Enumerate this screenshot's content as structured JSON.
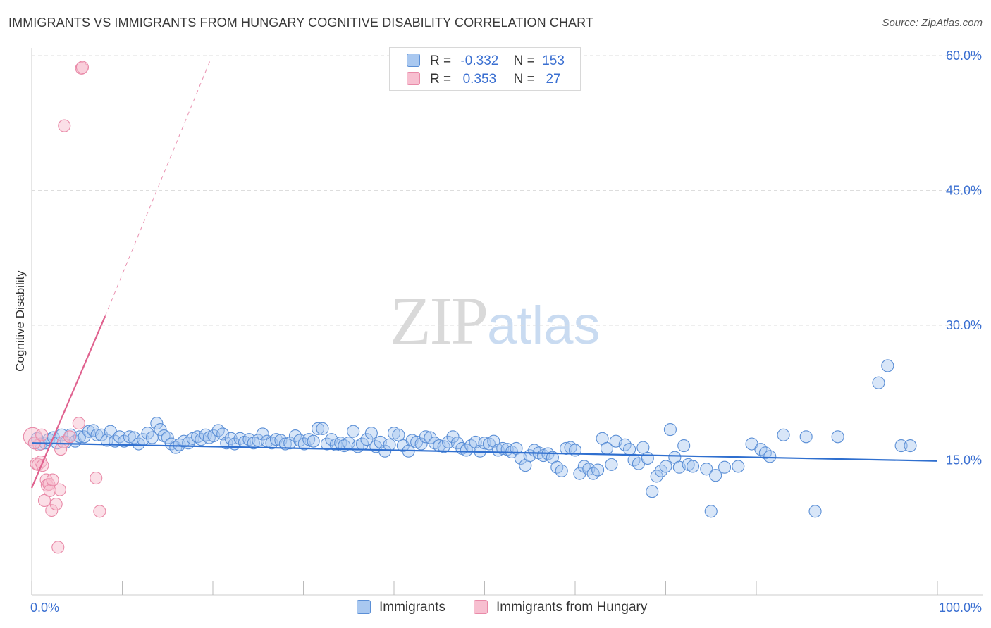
{
  "header": {
    "title": "IMMIGRANTS VS IMMIGRANTS FROM HUNGARY COGNITIVE DISABILITY CORRELATION CHART",
    "source": "Source: ZipAtlas.com"
  },
  "watermark": {
    "zip": "ZIP",
    "atlas": "atlas"
  },
  "legend": {
    "rows": [
      {
        "r_label": "R =",
        "r_value": "-0.332",
        "n_label": "N =",
        "n_value": "153"
      },
      {
        "r_label": "R =",
        "r_value": "0.353",
        "n_label": "N =",
        "n_value": "27"
      }
    ]
  },
  "bottom_legend": {
    "series1": "Immigrants",
    "series2": "Immigrants from Hungary"
  },
  "colors": {
    "blue_fill": "#a9c8f0",
    "blue_stroke": "#5b8fd6",
    "blue_line": "#2f6fcf",
    "pink_fill": "#f7bfd0",
    "pink_stroke": "#e98aa8",
    "pink_line": "#e0628f",
    "grid": "#dddddd",
    "label": "#3a6fd1"
  },
  "chart_data": {
    "type": "scatter",
    "title": "IMMIGRANTS VS IMMIGRANTS FROM HUNGARY COGNITIVE DISABILITY CORRELATION CHART",
    "xlabel": "",
    "ylabel": "Cognitive Disability",
    "xlim": [
      0,
      100
    ],
    "ylim": [
      0,
      60
    ],
    "x_tick_labels": [
      "0.0%",
      "100.0%"
    ],
    "y_ticks": [
      15,
      30,
      45,
      60
    ],
    "y_tick_labels": [
      "15.0%",
      "30.0%",
      "45.0%",
      "60.0%"
    ],
    "grid": true,
    "legend_position": "top-center",
    "series": [
      {
        "name": "Immigrants",
        "r": -0.332,
        "n": 153,
        "trend": {
          "x": [
            0,
            100
          ],
          "y": [
            16.9,
            14.9
          ]
        },
        "points": [
          [
            0.3,
            16.9
          ],
          [
            0.6,
            17.4
          ],
          [
            1.0,
            16.8
          ],
          [
            1.5,
            16.9
          ],
          [
            1.9,
            17.3
          ],
          [
            2.4,
            17.5
          ],
          [
            2.8,
            16.9
          ],
          [
            3.3,
            17.8
          ],
          [
            3.8,
            17.0
          ],
          [
            4.3,
            17.8
          ],
          [
            4.8,
            17.1
          ],
          [
            5.3,
            17.6
          ],
          [
            5.8,
            17.6
          ],
          [
            6.3,
            18.2
          ],
          [
            6.8,
            18.3
          ],
          [
            7.2,
            17.8
          ],
          [
            7.7,
            17.8
          ],
          [
            8.3,
            17.2
          ],
          [
            8.7,
            18.2
          ],
          [
            9.2,
            17.1
          ],
          [
            9.7,
            17.6
          ],
          [
            10.2,
            17.1
          ],
          [
            10.8,
            17.6
          ],
          [
            11.3,
            17.5
          ],
          [
            11.8,
            16.8
          ],
          [
            12.3,
            17.3
          ],
          [
            12.8,
            18.0
          ],
          [
            13.3,
            17.5
          ],
          [
            13.8,
            19.1
          ],
          [
            14.2,
            18.4
          ],
          [
            14.6,
            17.7
          ],
          [
            15.0,
            17.5
          ],
          [
            15.4,
            16.8
          ],
          [
            15.9,
            16.4
          ],
          [
            16.3,
            16.7
          ],
          [
            16.8,
            17.1
          ],
          [
            17.3,
            16.9
          ],
          [
            17.8,
            17.4
          ],
          [
            18.3,
            17.6
          ],
          [
            18.7,
            17.3
          ],
          [
            19.2,
            17.8
          ],
          [
            19.6,
            17.5
          ],
          [
            20.1,
            17.7
          ],
          [
            20.6,
            18.3
          ],
          [
            21.1,
            17.9
          ],
          [
            21.5,
            16.9
          ],
          [
            22.0,
            17.4
          ],
          [
            22.4,
            16.8
          ],
          [
            23.0,
            17.4
          ],
          [
            23.5,
            17.0
          ],
          [
            24.0,
            17.3
          ],
          [
            24.5,
            16.9
          ],
          [
            25.0,
            17.2
          ],
          [
            25.5,
            17.9
          ],
          [
            26.0,
            17.1
          ],
          [
            26.5,
            16.9
          ],
          [
            27.0,
            17.3
          ],
          [
            27.5,
            17.2
          ],
          [
            28.0,
            16.8
          ],
          [
            28.5,
            16.9
          ],
          [
            29.1,
            17.7
          ],
          [
            29.6,
            17.2
          ],
          [
            30.1,
            16.8
          ],
          [
            30.6,
            17.3
          ],
          [
            31.1,
            17.1
          ],
          [
            31.6,
            18.5
          ],
          [
            32.1,
            18.5
          ],
          [
            32.6,
            16.8
          ],
          [
            33.1,
            17.3
          ],
          [
            33.6,
            16.7
          ],
          [
            34.1,
            16.9
          ],
          [
            34.5,
            16.6
          ],
          [
            35.0,
            16.9
          ],
          [
            35.5,
            18.2
          ],
          [
            36.0,
            16.5
          ],
          [
            36.5,
            16.8
          ],
          [
            37.0,
            17.3
          ],
          [
            37.5,
            18.0
          ],
          [
            38.0,
            16.5
          ],
          [
            38.5,
            17.0
          ],
          [
            39.0,
            16.0
          ],
          [
            39.5,
            16.7
          ],
          [
            40.0,
            18.0
          ],
          [
            40.5,
            17.8
          ],
          [
            41.0,
            16.6
          ],
          [
            41.6,
            16.0
          ],
          [
            42.0,
            17.2
          ],
          [
            42.5,
            17.0
          ],
          [
            43.0,
            16.8
          ],
          [
            43.5,
            17.6
          ],
          [
            44.0,
            17.5
          ],
          [
            44.5,
            16.9
          ],
          [
            45.0,
            16.6
          ],
          [
            45.5,
            16.5
          ],
          [
            46.0,
            17.0
          ],
          [
            46.5,
            17.6
          ],
          [
            47.0,
            16.9
          ],
          [
            47.5,
            16.3
          ],
          [
            48.0,
            16.1
          ],
          [
            48.5,
            16.6
          ],
          [
            49.0,
            17.0
          ],
          [
            49.5,
            16.0
          ],
          [
            50.0,
            16.9
          ],
          [
            50.5,
            16.8
          ],
          [
            51.0,
            17.1
          ],
          [
            51.5,
            16.1
          ],
          [
            52.0,
            16.3
          ],
          [
            52.5,
            16.2
          ],
          [
            53.0,
            15.9
          ],
          [
            53.5,
            16.3
          ],
          [
            54.0,
            15.2
          ],
          [
            54.5,
            14.4
          ],
          [
            55.0,
            15.5
          ],
          [
            55.5,
            16.1
          ],
          [
            56.0,
            15.8
          ],
          [
            56.5,
            15.5
          ],
          [
            57.0,
            15.7
          ],
          [
            57.5,
            15.3
          ],
          [
            58.0,
            14.2
          ],
          [
            58.5,
            13.8
          ],
          [
            59.0,
            16.3
          ],
          [
            59.5,
            16.4
          ],
          [
            60.0,
            16.1
          ],
          [
            60.5,
            13.5
          ],
          [
            61.0,
            14.3
          ],
          [
            61.5,
            14.0
          ],
          [
            62.0,
            13.5
          ],
          [
            62.5,
            13.9
          ],
          [
            63.0,
            17.4
          ],
          [
            63.5,
            16.3
          ],
          [
            64.0,
            14.5
          ],
          [
            64.5,
            17.1
          ],
          [
            65.5,
            16.7
          ],
          [
            66.0,
            16.2
          ],
          [
            66.5,
            15.0
          ],
          [
            67.0,
            14.6
          ],
          [
            67.5,
            16.4
          ],
          [
            68.0,
            15.2
          ],
          [
            68.5,
            11.5
          ],
          [
            69.0,
            13.2
          ],
          [
            69.5,
            13.8
          ],
          [
            70.0,
            14.3
          ],
          [
            70.5,
            18.4
          ],
          [
            71.0,
            15.3
          ],
          [
            71.5,
            14.2
          ],
          [
            72.0,
            16.6
          ],
          [
            72.5,
            14.5
          ],
          [
            73.0,
            14.3
          ],
          [
            74.5,
            14.0
          ],
          [
            75.0,
            9.3
          ],
          [
            75.5,
            13.3
          ],
          [
            76.5,
            14.2
          ],
          [
            78.0,
            14.3
          ],
          [
            79.5,
            16.8
          ],
          [
            80.5,
            16.2
          ],
          [
            81.0,
            15.8
          ],
          [
            81.5,
            15.4
          ],
          [
            83.0,
            17.8
          ],
          [
            85.5,
            17.6
          ],
          [
            86.5,
            9.3
          ],
          [
            89.0,
            17.6
          ],
          [
            93.5,
            23.6
          ],
          [
            94.5,
            25.5
          ],
          [
            96.0,
            16.6
          ],
          [
            97.0,
            16.6
          ]
        ]
      },
      {
        "name": "Immigrants from Hungary",
        "r": 0.353,
        "n": 27,
        "trend": {
          "x": [
            0,
            8.1
          ],
          "y": [
            11.9,
            31.0
          ],
          "extension": {
            "x": [
              8.1,
              19.8
            ],
            "y": [
              31.0,
              59.7
            ]
          }
        },
        "points": [
          [
            0.1,
            17.6
          ],
          [
            0.5,
            14.6
          ],
          [
            0.7,
            14.5
          ],
          [
            0.8,
            16.7
          ],
          [
            1.0,
            14.8
          ],
          [
            1.2,
            14.4
          ],
          [
            1.4,
            10.5
          ],
          [
            1.6,
            12.8
          ],
          [
            1.7,
            12.2
          ],
          [
            1.9,
            12.3
          ],
          [
            2.0,
            11.6
          ],
          [
            2.2,
            9.4
          ],
          [
            2.3,
            12.8
          ],
          [
            2.7,
            10.1
          ],
          [
            2.9,
            5.3
          ],
          [
            3.1,
            11.7
          ],
          [
            3.2,
            16.2
          ],
          [
            3.5,
            17.0
          ],
          [
            3.6,
            52.2
          ],
          [
            4.2,
            17.6
          ],
          [
            5.2,
            19.1
          ],
          [
            5.5,
            58.6
          ],
          [
            5.6,
            58.7
          ],
          [
            7.1,
            13.0
          ],
          [
            7.5,
            9.3
          ],
          [
            0.3,
            16.9
          ],
          [
            1.1,
            17.8
          ]
        ]
      }
    ]
  }
}
